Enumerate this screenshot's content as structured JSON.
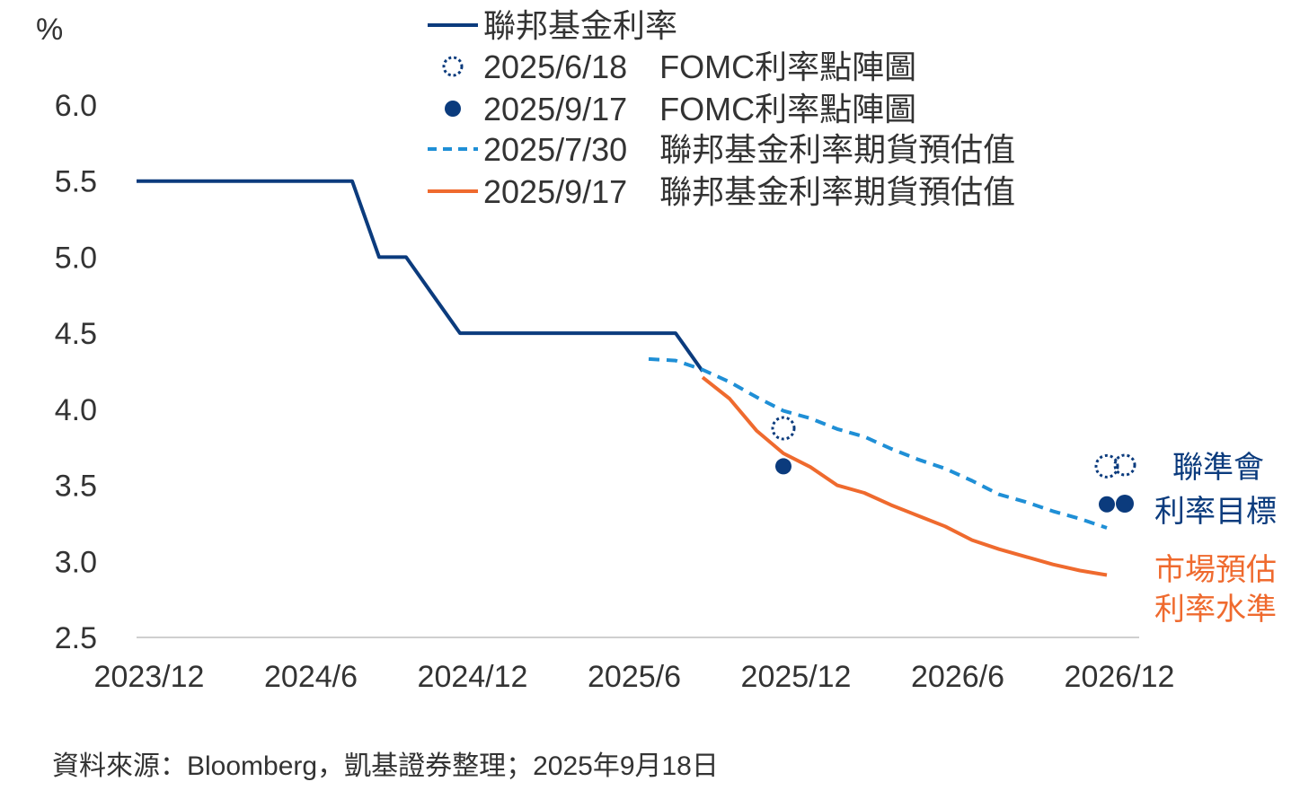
{
  "chart_data": {
    "type": "line",
    "unit_label": "%",
    "y_ticks": [
      "6.0",
      "5.5",
      "5.0",
      "4.5",
      "4.0",
      "3.5",
      "3.0",
      "2.5"
    ],
    "ylim": [
      2.5,
      6.25
    ],
    "x_tick_labels": [
      "2023/12",
      "2024/6",
      "2024/12",
      "2025/6",
      "2025/12",
      "2026/6",
      "2026/12"
    ],
    "x_tick_months": [
      "2023-12",
      "2024-06",
      "2024-12",
      "2025-06",
      "2025-12",
      "2026-06",
      "2026-12"
    ],
    "legend": [
      {
        "label": "聯邦基金利率",
        "style": "solid",
        "color": "#0b3b7d"
      },
      {
        "label": "2025/6/18　FOMC利率點陣圖",
        "style": "dotted-circle",
        "color": "#0b3b7d"
      },
      {
        "label": "2025/9/17　FOMC利率點陣圖",
        "style": "dot",
        "color": "#0b3b7d"
      },
      {
        "label": "2025/7/30　聯邦基金利率期貨預估值",
        "style": "dashed",
        "color": "#1f8fd6"
      },
      {
        "label": "2025/9/17　聯邦基金利率期貨預估值",
        "style": "solid",
        "color": "#ef6a2e"
      }
    ],
    "series": [
      {
        "name": "聯邦基金利率",
        "color": "#0b3b7d",
        "points": [
          [
            "2023-12",
            5.5
          ],
          [
            "2024-07",
            5.5
          ],
          [
            "2024-08",
            5.5
          ],
          [
            "2024-09",
            5.0
          ],
          [
            "2024-10",
            5.0
          ],
          [
            "2024-11",
            4.75
          ],
          [
            "2024-12",
            4.5
          ],
          [
            "2025-07",
            4.5
          ],
          [
            "2025-08",
            4.5
          ],
          [
            "2025-09",
            4.25
          ]
        ]
      },
      {
        "name": "2025/7/30　聯邦基金利率期貨預估值",
        "color": "#1f8fd6",
        "dashed": true,
        "points": [
          [
            "2025-07",
            4.33
          ],
          [
            "2025-08",
            4.32
          ],
          [
            "2025-09",
            4.26
          ],
          [
            "2025-10",
            4.18
          ],
          [
            "2025-11",
            4.08
          ],
          [
            "2025-12",
            3.99
          ],
          [
            "2026-01",
            3.94
          ],
          [
            "2026-02",
            3.87
          ],
          [
            "2026-03",
            3.82
          ],
          [
            "2026-04",
            3.74
          ],
          [
            "2026-05",
            3.67
          ],
          [
            "2026-06",
            3.61
          ],
          [
            "2026-07",
            3.53
          ],
          [
            "2026-08",
            3.44
          ],
          [
            "2026-09",
            3.39
          ],
          [
            "2026-10",
            3.33
          ],
          [
            "2026-11",
            3.28
          ],
          [
            "2026-12",
            3.22
          ]
        ]
      },
      {
        "name": "2025/9/17　聯邦基金利率期貨預估值",
        "color": "#ef6a2e",
        "dashed": false,
        "points": [
          [
            "2025-09",
            4.21
          ],
          [
            "2025-10",
            4.07
          ],
          [
            "2025-11",
            3.86
          ],
          [
            "2025-12",
            3.71
          ],
          [
            "2026-01",
            3.62
          ],
          [
            "2026-02",
            3.5
          ],
          [
            "2026-03",
            3.45
          ],
          [
            "2026-04",
            3.37
          ],
          [
            "2026-05",
            3.3
          ],
          [
            "2026-06",
            3.23
          ],
          [
            "2026-07",
            3.14
          ],
          [
            "2026-08",
            3.08
          ],
          [
            "2026-09",
            3.03
          ],
          [
            "2026-10",
            2.98
          ],
          [
            "2026-11",
            2.94
          ],
          [
            "2026-12",
            2.91
          ]
        ]
      }
    ],
    "dot_plot": [
      {
        "name": "2025/6/18　FOMC利率點陣圖",
        "style": "dotted-circle",
        "color": "#0b3b7d",
        "points": [
          [
            "2025-12",
            3.875
          ],
          [
            "2026-12",
            3.625
          ]
        ]
      },
      {
        "name": "2025/9/17　FOMC利率點陣圖",
        "style": "dot",
        "color": "#0b3b7d",
        "points": [
          [
            "2025-12",
            3.625
          ],
          [
            "2026-12",
            3.375
          ]
        ]
      }
    ],
    "annotations": {
      "fed_target_line1": "聯準會",
      "fed_target_line2": "利率目標",
      "market_line1": "市場預估",
      "market_line2": "利率水準",
      "fed_color": "#0b3b7d",
      "market_color": "#ef6a2e"
    }
  },
  "source_note": "資料來源：Bloomberg，凱基證券整理；2025年9月18日"
}
